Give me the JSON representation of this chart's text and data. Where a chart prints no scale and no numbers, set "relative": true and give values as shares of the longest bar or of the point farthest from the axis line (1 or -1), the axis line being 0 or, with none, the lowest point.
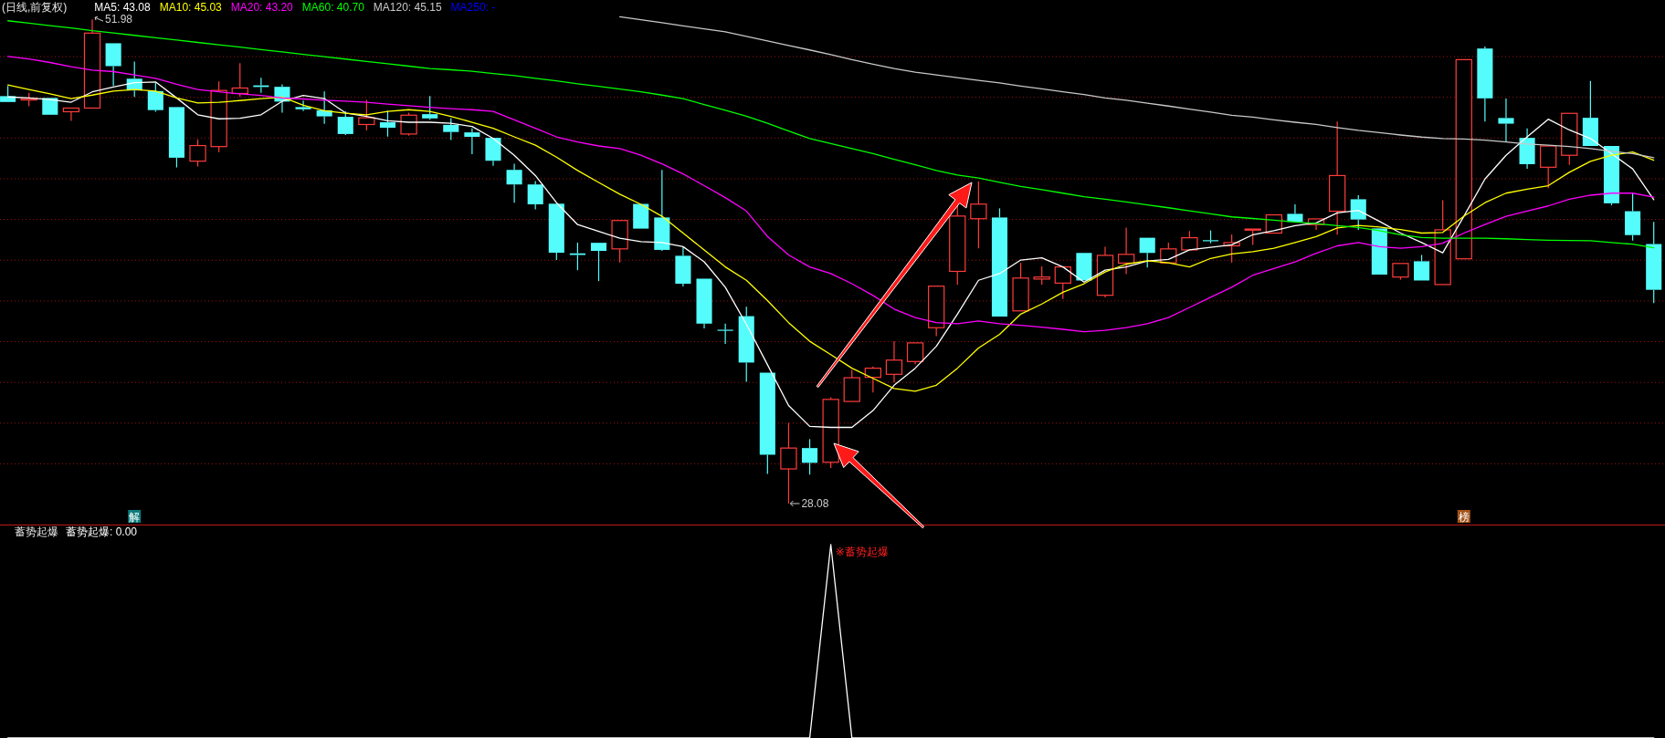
{
  "chart_data": [
    {
      "type": "candlestick",
      "title": "(日线,前复权)",
      "legend": "top left",
      "grid": "y",
      "yticks": [
        {
          "value": 50.14,
          "label": null
        },
        {
          "value": 48.13,
          "label": null
        },
        {
          "value": 46.12,
          "label": null
        },
        {
          "value": 44.11,
          "label": null
        },
        {
          "value": 42.1,
          "label": null
        },
        {
          "value": 40.09,
          "label": null
        },
        {
          "value": 38.08,
          "label": null
        },
        {
          "value": 36.07,
          "label": null
        },
        {
          "value": 34.06,
          "label": null
        },
        {
          "value": 32.05,
          "label": null
        },
        {
          "value": 30.04,
          "label": null
        }
      ],
      "categories": [
        null,
        null,
        null,
        null,
        null,
        null,
        null,
        null,
        null,
        null,
        null,
        null,
        null,
        null,
        null,
        null,
        null,
        null,
        null,
        null,
        null,
        null,
        null,
        null,
        null,
        null,
        null,
        null,
        null,
        null,
        null,
        null,
        null,
        null,
        null,
        null,
        null,
        null,
        null,
        null,
        null,
        null,
        null,
        null,
        null,
        null,
        null,
        null,
        null,
        null,
        null,
        null,
        null,
        null,
        null,
        null,
        null,
        null,
        null,
        null,
        null,
        null,
        null,
        null,
        null,
        null,
        null,
        null,
        null,
        null,
        null,
        null,
        null,
        null,
        null,
        null,
        null,
        null,
        null
      ],
      "ohlc": [
        [
          48.19,
          48.69,
          47.9,
          47.9
        ],
        [
          48.0,
          48.35,
          47.69,
          48.07
        ],
        [
          48.1,
          48.1,
          47.27,
          47.27
        ],
        [
          47.42,
          47.6,
          46.97,
          47.6
        ],
        [
          47.6,
          51.98,
          47.6,
          51.3
        ],
        [
          50.8,
          50.8,
          48.69,
          49.67
        ],
        [
          49.05,
          49.9,
          48.15,
          48.47
        ],
        [
          48.44,
          48.85,
          47.42,
          47.5
        ],
        [
          47.65,
          47.65,
          44.67,
          45.15
        ],
        [
          44.98,
          46.05,
          44.72,
          45.75
        ],
        [
          45.7,
          48.92,
          45.43,
          48.47
        ],
        [
          48.32,
          49.82,
          48.15,
          48.59
        ],
        [
          48.72,
          49.1,
          48.35,
          48.64
        ],
        [
          48.65,
          48.77,
          47.37,
          47.92
        ],
        [
          47.65,
          47.97,
          47.45,
          47.54
        ],
        [
          47.49,
          48.42,
          46.82,
          47.19
        ],
        [
          47.17,
          47.44,
          46.27,
          46.32
        ],
        [
          46.79,
          48.0,
          46.5,
          47.12
        ],
        [
          46.9,
          47.47,
          46.19,
          46.63
        ],
        [
          46.32,
          47.37,
          46.24,
          47.25
        ],
        [
          47.3,
          48.19,
          47.02,
          47.09
        ],
        [
          46.77,
          47.1,
          46.02,
          46.42
        ],
        [
          46.4,
          46.6,
          45.32,
          46.18
        ],
        [
          46.13,
          46.13,
          44.75,
          45.0
        ],
        [
          44.55,
          44.85,
          42.93,
          43.83
        ],
        [
          43.83,
          44.0,
          42.6,
          42.85
        ],
        [
          42.88,
          42.88,
          40.1,
          40.46
        ],
        [
          40.43,
          40.96,
          39.6,
          40.35
        ],
        [
          40.95,
          40.95,
          39.06,
          40.55
        ],
        [
          40.65,
          42.05,
          39.98,
          42.05
        ],
        [
          42.87,
          42.87,
          41.65,
          41.65
        ],
        [
          42.2,
          44.55,
          40.55,
          40.6
        ],
        [
          40.31,
          40.76,
          38.8,
          38.93
        ],
        [
          39.18,
          39.18,
          36.73,
          36.96
        ],
        [
          36.66,
          36.96,
          35.96,
          36.63
        ],
        [
          37.33,
          37.8,
          34.09,
          35.04
        ],
        [
          34.54,
          34.54,
          29.54,
          30.49
        ],
        [
          29.79,
          32.06,
          28.08,
          30.82
        ],
        [
          30.82,
          31.26,
          29.51,
          30.09
        ],
        [
          30.12,
          33.32,
          29.84,
          33.22
        ],
        [
          33.12,
          34.68,
          33.12,
          34.29
        ],
        [
          34.31,
          34.84,
          33.56,
          34.76
        ],
        [
          34.46,
          36.09,
          34.06,
          35.16
        ],
        [
          35.09,
          36.01,
          34.96,
          36.01
        ],
        [
          36.76,
          38.81,
          36.34,
          38.81
        ],
        [
          39.54,
          43.55,
          38.89,
          42.27
        ],
        [
          42.14,
          43.98,
          40.68,
          42.86
        ],
        [
          42.2,
          42.65,
          37.31,
          37.31
        ],
        [
          37.59,
          39.96,
          37.59,
          39.21
        ],
        [
          39.16,
          39.79,
          38.88,
          39.26
        ],
        [
          38.96,
          39.76,
          38.18,
          39.76
        ],
        [
          40.45,
          40.45,
          39.09,
          39.09
        ],
        [
          38.36,
          40.76,
          38.26,
          40.33
        ],
        [
          39.95,
          41.7,
          39.4,
          40.38
        ],
        [
          41.2,
          41.2,
          39.73,
          40.45
        ],
        [
          39.96,
          40.96,
          39.96,
          40.65
        ],
        [
          40.6,
          41.53,
          40.6,
          41.2
        ],
        [
          41.08,
          41.56,
          40.93,
          41.05
        ],
        [
          40.8,
          41.36,
          39.98,
          40.96
        ],
        [
          41.59,
          41.63,
          40.84,
          41.63
        ],
        [
          41.43,
          42.33,
          41.43,
          42.33
        ],
        [
          42.38,
          42.85,
          41.98,
          41.98
        ],
        [
          41.85,
          42.13,
          41.59,
          42.13
        ],
        [
          42.51,
          46.93,
          41.35,
          44.27
        ],
        [
          43.1,
          43.3,
          41.59,
          42.1
        ],
        [
          41.66,
          41.66,
          39.38,
          39.38
        ],
        [
          39.26,
          39.93,
          39.13,
          39.93
        ],
        [
          40.04,
          40.35,
          39.09,
          39.09
        ],
        [
          38.89,
          43.05,
          38.89,
          41.59
        ],
        [
          40.16,
          49.99,
          40.16,
          49.99
        ],
        [
          50.54,
          50.64,
          46.93,
          48.08
        ],
        [
          47.11,
          48.07,
          45.93,
          46.83
        ],
        [
          46.13,
          46.6,
          44.6,
          44.83
        ],
        [
          44.68,
          45.73,
          43.65,
          45.73
        ],
        [
          45.27,
          47.34,
          44.8,
          47.34
        ],
        [
          47.12,
          48.94,
          45.73,
          45.73
        ],
        [
          45.73,
          45.73,
          42.8,
          42.9
        ],
        [
          42.51,
          43.4,
          41.06,
          41.33
        ],
        [
          40.89,
          41.98,
          37.98,
          38.63
        ]
      ],
      "series": [
        {
          "type": "line",
          "name": "MA5: 43.08",
          "color": "#ffffff",
          "values": [
            48.15,
            48.1,
            48.02,
            47.89,
            48.4,
            48.64,
            48.85,
            48.89,
            48.1,
            47.27,
            47.07,
            47.1,
            47.27,
            47.94,
            48.22,
            48.07,
            47.36,
            47.19,
            46.97,
            46.9,
            46.9,
            46.85,
            46.69,
            46.1,
            45.27,
            44.27,
            42.93,
            41.85,
            41.51,
            41.18,
            41.01,
            40.96,
            40.76,
            40.01,
            38.76,
            36.93,
            34.93,
            32.92,
            31.89,
            31.84,
            31.84,
            32.67,
            33.92,
            34.76,
            35.84,
            37.43,
            39.1,
            39.43,
            40.1,
            40.21,
            39.76,
            39.01,
            39.6,
            39.76,
            40.05,
            40.13,
            40.6,
            40.73,
            40.85,
            41.35,
            41.55,
            41.8,
            41.93,
            42.43,
            42.55,
            42.01,
            41.43,
            40.96,
            40.46,
            42.26,
            44.1,
            45.27,
            46.18,
            47.05,
            46.52,
            46.1,
            45.35,
            44.6,
            43.08
          ]
        },
        {
          "type": "line",
          "name": "MA10: 45.03",
          "color": "#ffff00",
          "values": [
            48.74,
            48.52,
            48.3,
            48.07,
            48.24,
            48.44,
            48.52,
            48.44,
            48.1,
            47.85,
            47.89,
            47.97,
            48.07,
            48.14,
            47.74,
            47.47,
            47.35,
            47.27,
            47.44,
            47.52,
            47.44,
            47.19,
            46.9,
            46.6,
            46.18,
            45.77,
            45.18,
            44.52,
            43.93,
            43.35,
            42.85,
            42.26,
            41.43,
            40.6,
            39.76,
            39.1,
            38.1,
            37.01,
            36.09,
            35.43,
            34.76,
            34.26,
            33.76,
            33.62,
            33.92,
            34.76,
            35.76,
            36.43,
            37.43,
            37.93,
            38.51,
            38.93,
            39.51,
            39.9,
            40.06,
            39.96,
            39.76,
            40.18,
            40.4,
            40.51,
            40.68,
            40.96,
            41.26,
            41.68,
            41.81,
            41.73,
            41.6,
            41.43,
            41.46,
            42.26,
            42.93,
            43.4,
            43.6,
            43.77,
            44.43,
            44.97,
            45.27,
            45.43,
            45.03
          ]
        },
        {
          "type": "line",
          "name": "MA20: 43.20",
          "color": "#ff00ff",
          "values": [
            50.15,
            50.02,
            49.85,
            49.64,
            49.47,
            49.4,
            49.24,
            49.07,
            48.77,
            48.52,
            48.4,
            48.3,
            48.22,
            48.1,
            48.05,
            47.99,
            47.94,
            47.89,
            47.8,
            47.72,
            47.64,
            47.57,
            47.52,
            47.44,
            47.02,
            46.6,
            46.18,
            45.93,
            45.73,
            45.6,
            45.27,
            44.85,
            44.35,
            43.77,
            43.18,
            42.52,
            41.26,
            40.35,
            39.76,
            39.43,
            38.93,
            38.35,
            37.68,
            37.26,
            37.01,
            36.96,
            37.09,
            36.96,
            36.88,
            36.79,
            36.68,
            36.56,
            36.63,
            36.76,
            36.96,
            37.26,
            37.76,
            38.26,
            38.76,
            39.35,
            39.68,
            40.01,
            40.43,
            40.8,
            40.96,
            40.76,
            40.68,
            40.76,
            40.93,
            41.43,
            41.85,
            42.26,
            42.52,
            42.77,
            43.1,
            43.3,
            43.4,
            43.4,
            43.2
          ]
        },
        {
          "type": "line",
          "name": "MA60: 40.70",
          "color": "#00ff00",
          "values": [
            51.91,
            51.79,
            51.67,
            51.56,
            51.42,
            51.31,
            51.19,
            51.07,
            50.96,
            50.84,
            50.72,
            50.61,
            50.49,
            50.37,
            50.25,
            50.14,
            50.02,
            49.9,
            49.79,
            49.67,
            49.55,
            49.49,
            49.42,
            49.3,
            49.2,
            49.07,
            48.94,
            48.8,
            48.67,
            48.54,
            48.4,
            48.24,
            48.07,
            47.77,
            47.49,
            47.2,
            46.85,
            46.47,
            46.1,
            45.85,
            45.6,
            45.35,
            45.07,
            44.8,
            44.52,
            44.3,
            44.15,
            43.93,
            43.73,
            43.57,
            43.4,
            43.23,
            43.1,
            42.97,
            42.82,
            42.68,
            42.53,
            42.38,
            42.23,
            42.15,
            42.07,
            41.98,
            41.9,
            41.8,
            41.71,
            41.55,
            41.35,
            41.21,
            41.18,
            41.18,
            41.18,
            41.15,
            41.11,
            41.08,
            41.06,
            41.05,
            40.96,
            40.88,
            40.7
          ]
        },
        {
          "type": "line",
          "name": "MA120: 45.15",
          "color": "#c8c8c8",
          "values": [
            null,
            null,
            null,
            null,
            null,
            null,
            null,
            null,
            null,
            null,
            null,
            null,
            null,
            null,
            null,
            null,
            null,
            null,
            null,
            null,
            null,
            null,
            null,
            null,
            null,
            null,
            null,
            null,
            null,
            52.11,
            51.96,
            51.81,
            51.66,
            51.51,
            51.36,
            51.14,
            50.91,
            50.69,
            50.47,
            50.24,
            49.99,
            49.77,
            49.55,
            49.37,
            49.24,
            49.1,
            48.97,
            48.84,
            48.69,
            48.55,
            48.4,
            48.27,
            48.1,
            47.99,
            47.84,
            47.7,
            47.55,
            47.4,
            47.24,
            47.15,
            47.02,
            46.9,
            46.79,
            46.64,
            46.5,
            46.39,
            46.27,
            46.17,
            46.1,
            46.07,
            46.02,
            45.93,
            45.83,
            45.77,
            45.7,
            45.6,
            45.47,
            45.35,
            45.15
          ]
        },
        {
          "type": "line",
          "name": "MA250: -",
          "color": "#0000ff",
          "values": [
            null,
            null,
            null,
            null,
            null,
            null,
            null,
            null,
            null,
            null,
            null,
            null,
            null,
            null,
            null,
            null,
            null,
            null,
            null,
            null,
            null,
            null,
            null,
            null,
            null,
            null,
            null,
            null,
            null,
            null,
            null,
            null,
            null,
            null,
            null,
            null,
            null,
            null,
            null,
            null,
            null,
            null,
            null,
            null,
            null,
            null,
            null,
            null,
            null,
            null,
            null,
            null,
            null,
            null,
            null,
            null,
            null,
            null,
            null,
            null,
            null,
            null,
            null,
            null,
            null,
            null,
            null,
            null,
            null,
            null,
            null,
            null,
            null,
            null,
            null,
            null,
            null,
            null,
            null
          ]
        }
      ],
      "annotations": [
        "51.98",
        "28.08",
        "解",
        "榜"
      ]
    },
    {
      "type": "line",
      "title": "蓄势起爆",
      "legend": "top left",
      "relative": true,
      "categories": [
        null,
        null,
        null,
        null,
        null,
        null,
        null,
        null,
        null,
        null,
        null,
        null,
        null,
        null,
        null,
        null,
        null,
        null,
        null,
        null,
        null,
        null,
        null,
        null,
        null,
        null,
        null,
        null,
        null,
        null,
        null,
        null,
        null,
        null,
        null,
        null,
        null,
        null,
        null,
        null,
        null,
        null,
        null,
        null,
        null,
        null,
        null,
        null,
        null,
        null,
        null,
        null,
        null,
        null,
        null,
        null,
        null,
        null,
        null,
        null,
        null,
        null,
        null,
        null,
        null,
        null,
        null,
        null,
        null,
        null,
        null,
        null,
        null,
        null,
        null,
        null,
        null,
        null,
        null
      ],
      "series": [
        {
          "name": "蓄势起爆: 0.00",
          "color": "#ffffff",
          "values": [
            0,
            0,
            0,
            0,
            0,
            0,
            0,
            0,
            0,
            0,
            0,
            0,
            0,
            0,
            0,
            0,
            0,
            0,
            0,
            0,
            0,
            0,
            0,
            0,
            0,
            0,
            0,
            0,
            0,
            0,
            0,
            0,
            0,
            0,
            0,
            0,
            0,
            0,
            0,
            1,
            0,
            0,
            0,
            0,
            0,
            0,
            0,
            0,
            0,
            0,
            0,
            0,
            0,
            0,
            0,
            0,
            0,
            0,
            0,
            0,
            0,
            0,
            0,
            0,
            0,
            0,
            0,
            0,
            0,
            0,
            0,
            0,
            0,
            0,
            0,
            0,
            0,
            0,
            0
          ]
        }
      ],
      "annotations": [
        "※蓄势起爆"
      ]
    }
  ]
}
